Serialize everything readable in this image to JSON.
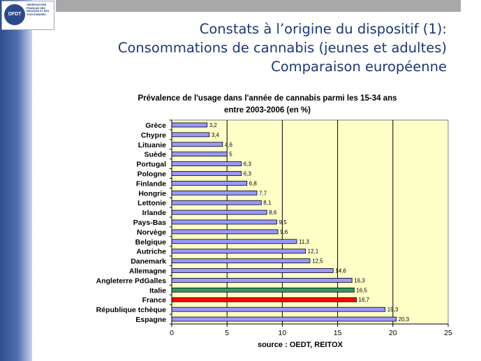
{
  "slide": {
    "title_line1": "Constats à l’origine du dispositif (1):",
    "title_line2": "Consommations de cannabis (jeunes et adultes)",
    "title_line3": "Comparaison européenne",
    "logo_mark": "OFDT",
    "logo_text": "OBSERVATOIRE\nFRANÇAIS DES\nDROGUES ET DES\nTOXICOMANIES"
  },
  "colors": {
    "band": "#4f6fb0",
    "plot_bg": "#ffffc8",
    "bar_default": "#9999ff",
    "bar_italie": "#339966",
    "bar_france": "#ff0000"
  },
  "chart_data": {
    "type": "bar",
    "orientation": "horizontal",
    "title_line1": "Prévalence de l'usage dans l'année de cannabis parmi les 15-34 ans",
    "title_line2": "entre 2003-2006 (en %)",
    "source": "source : OEDT, REITOX",
    "categories": [
      "Grèce",
      "Chypre",
      "Lituanie",
      "Suède",
      "Portugal",
      "Pologne",
      "Finlande",
      "Hongrie",
      "Lettonie",
      "Irlande",
      "Pays-Bas",
      "Norvège",
      "Belgique",
      "Autriche",
      "Danemark",
      "Allemagne",
      "Angleterre PdGalles",
      "Italie",
      "France",
      "République tchèque",
      "Espagne"
    ],
    "values": [
      3.2,
      3.4,
      4.6,
      5,
      6.3,
      6.3,
      6.8,
      7.7,
      8.1,
      8.6,
      9.5,
      9.6,
      11.3,
      12.1,
      12.5,
      14.6,
      16.3,
      16.5,
      16.7,
      19.3,
      20.3
    ],
    "value_labels": [
      "3,2",
      "3,4",
      "4,6",
      "5",
      "6,3",
      "6,3",
      "6,8",
      "7,7",
      "8,1",
      "8,6",
      "9,5",
      "9,6",
      "11,3",
      "12,1",
      "12,5",
      "14,6",
      "16,3",
      "16,5",
      "16,7",
      "19,3",
      "20,3"
    ],
    "highlight": {
      "Italie": "bar_italie",
      "France": "bar_france"
    },
    "xlim": [
      0,
      25
    ],
    "xticks": [
      0,
      5,
      10,
      15,
      20,
      25
    ],
    "grid": "vertical",
    "legend": "none"
  }
}
